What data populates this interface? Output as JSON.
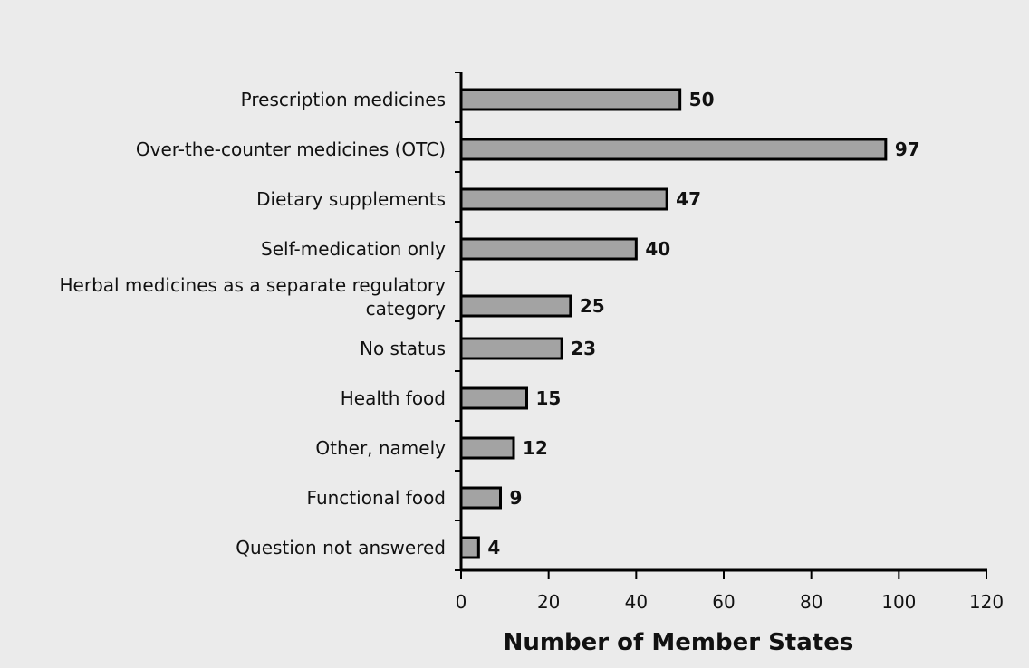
{
  "chart_data": {
    "type": "bar",
    "orientation": "horizontal",
    "categories": [
      [
        "Prescription medicines"
      ],
      [
        "Over-the-counter medicines (OTC)"
      ],
      [
        "Dietary supplements"
      ],
      [
        "Self-medication only"
      ],
      [
        "Herbal medicines as a separate regulatory",
        "category"
      ],
      [
        "No status"
      ],
      [
        "Health food"
      ],
      [
        "Other, namely"
      ],
      [
        "Functional food"
      ],
      [
        "Question not answered"
      ]
    ],
    "values": [
      50,
      97,
      47,
      40,
      25,
      23,
      15,
      12,
      9,
      4
    ],
    "xlabel": "Number of Member States",
    "ylabel": "",
    "xlim": [
      0,
      120
    ],
    "xticks": [
      0,
      20,
      40,
      60,
      80,
      100,
      120
    ],
    "grid": false,
    "legend": "none",
    "colors": {
      "bar_fill": "#a3a3a3",
      "bar_stroke": "#000000",
      "background": "#ebebeb"
    }
  }
}
